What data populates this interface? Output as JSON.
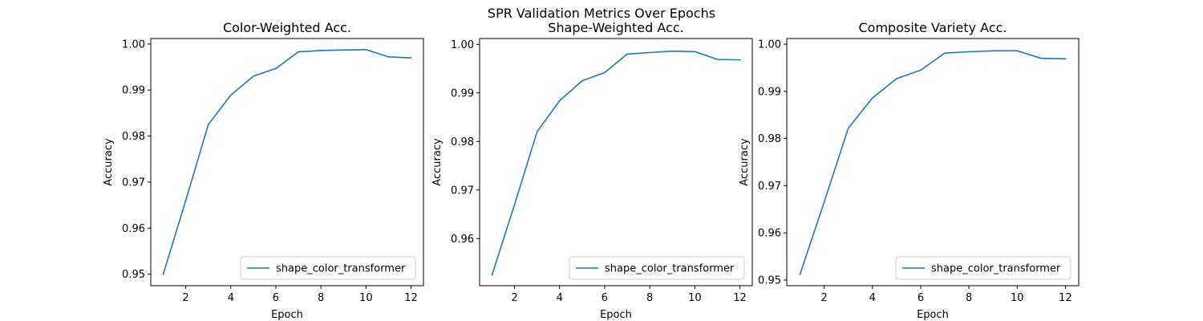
{
  "figure": {
    "suptitle": "SPR Validation Metrics Over Epochs"
  },
  "chart_data": [
    {
      "type": "line",
      "title": "Color-Weighted Acc.",
      "xlabel": "Epoch",
      "ylabel": "Accuracy",
      "xlim": [
        0.45,
        12.55
      ],
      "ylim": [
        0.9475,
        1.0012
      ],
      "xticks": [
        2,
        4,
        6,
        8,
        10,
        12
      ],
      "yticks": [
        0.95,
        0.96,
        0.97,
        0.98,
        0.99,
        1.0
      ],
      "ytick_labels": [
        "0.95",
        "0.96",
        "0.97",
        "0.98",
        "0.99",
        "1.00"
      ],
      "grid": false,
      "legend": "lower-right",
      "series": [
        {
          "name": "shape_color_transformer",
          "color": "#1f77b4",
          "x": [
            1,
            2,
            3,
            4,
            5,
            6,
            7,
            8,
            9,
            10,
            11,
            12
          ],
          "y": [
            0.95,
            0.966,
            0.9825,
            0.9889,
            0.993,
            0.9947,
            0.9983,
            0.9986,
            0.9987,
            0.9988,
            0.9972,
            0.997
          ]
        }
      ]
    },
    {
      "type": "line",
      "title": "Shape-Weighted Acc.",
      "xlabel": "Epoch",
      "ylabel": "Accuracy",
      "xlim": [
        0.45,
        12.55
      ],
      "ylim": [
        0.9503,
        1.0012
      ],
      "xticks": [
        2,
        4,
        6,
        8,
        10,
        12
      ],
      "yticks": [
        0.96,
        0.97,
        0.98,
        0.99,
        1.0
      ],
      "ytick_labels": [
        "0.96",
        "0.97",
        "0.98",
        "0.99",
        "1.00"
      ],
      "grid": false,
      "legend": "lower-right",
      "series": [
        {
          "name": "shape_color_transformer",
          "color": "#1f77b4",
          "x": [
            1,
            2,
            3,
            4,
            5,
            6,
            7,
            8,
            9,
            10,
            11,
            12
          ],
          "y": [
            0.9525,
            0.967,
            0.982,
            0.9884,
            0.9925,
            0.9942,
            0.998,
            0.9983,
            0.9986,
            0.9985,
            0.9969,
            0.9968
          ]
        }
      ]
    },
    {
      "type": "line",
      "title": "Composite Variety Acc.",
      "xlabel": "Epoch",
      "ylabel": "Accuracy",
      "xlim": [
        0.45,
        12.55
      ],
      "ylim": [
        0.9488,
        1.0012
      ],
      "xticks": [
        2,
        4,
        6,
        8,
        10,
        12
      ],
      "yticks": [
        0.95,
        0.96,
        0.97,
        0.98,
        0.99,
        1.0
      ],
      "ytick_labels": [
        "0.95",
        "0.96",
        "0.97",
        "0.98",
        "0.99",
        "1.00"
      ],
      "grid": false,
      "legend": "lower-right",
      "series": [
        {
          "name": "shape_color_transformer",
          "color": "#1f77b4",
          "x": [
            1,
            2,
            3,
            4,
            5,
            6,
            7,
            8,
            9,
            10,
            11,
            12
          ],
          "y": [
            0.9512,
            0.9665,
            0.9822,
            0.9886,
            0.9927,
            0.9945,
            0.9981,
            0.9984,
            0.9986,
            0.9986,
            0.997,
            0.9969
          ]
        }
      ]
    }
  ]
}
